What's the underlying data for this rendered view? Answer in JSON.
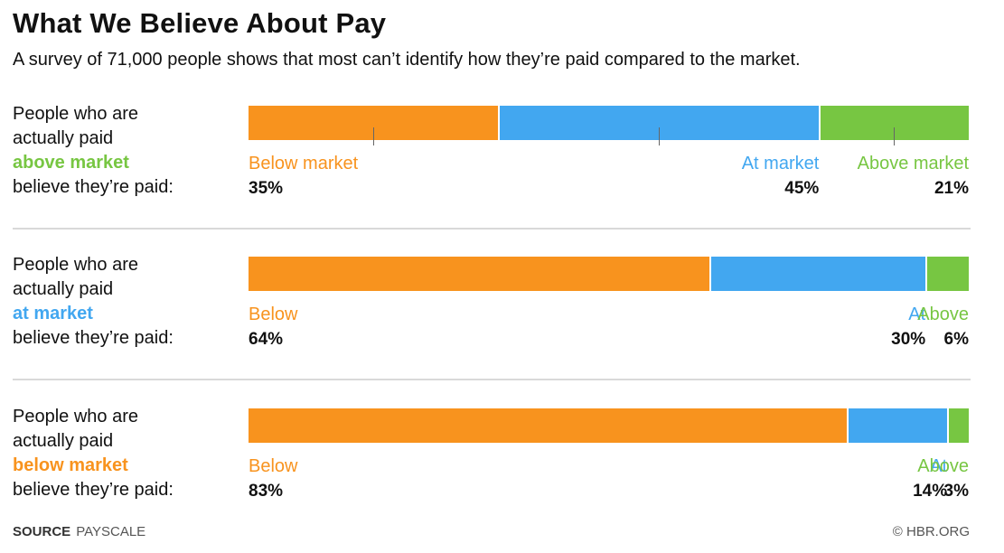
{
  "title": "What We Believe About Pay",
  "subtitle": "A survey of 71,000 people shows that most can’t identify how they’re paid compared to the market.",
  "colors": {
    "below": "#f8931e",
    "at": "#42a7f0",
    "above": "#77c642"
  },
  "chart_data": {
    "type": "bar",
    "orientation": "horizontal-stacked-100",
    "title": "What We Believe About Pay",
    "subtitle": "A survey of 71,000 people shows that most can’t identify how they’re paid compared to the market.",
    "series_names": [
      "Below market",
      "At market",
      "Above market"
    ],
    "groups": [
      {
        "label_lines": [
          "People who are",
          "actually paid"
        ],
        "highlight": "above market",
        "highlight_key": "above",
        "label_end": "believe they’re paid:",
        "values": [
          35,
          45,
          21
        ],
        "value_labels": [
          "35%",
          "45%",
          "21%"
        ],
        "category_labels": [
          "Below market",
          "At market",
          "Above market"
        ],
        "show_ticks": true
      },
      {
        "label_lines": [
          "People who are",
          "actually paid"
        ],
        "highlight": "at market",
        "highlight_key": "at",
        "label_end": "believe they’re paid:",
        "values": [
          64,
          30,
          6
        ],
        "value_labels": [
          "64%",
          "30%",
          "6%"
        ],
        "category_labels": [
          "Below",
          "At",
          "Above"
        ],
        "show_ticks": false
      },
      {
        "label_lines": [
          "People who are",
          "actually paid"
        ],
        "highlight": "below market",
        "highlight_key": "below",
        "label_end": "believe they’re paid:",
        "values": [
          83,
          14,
          3
        ],
        "value_labels": [
          "83%",
          "14%",
          "3%"
        ],
        "category_labels": [
          "Below",
          "At",
          "Above"
        ],
        "show_ticks": false
      }
    ]
  },
  "footer": {
    "source_label": "SOURCE",
    "source_value": "PAYSCALE",
    "credit": "© HBR.ORG"
  }
}
